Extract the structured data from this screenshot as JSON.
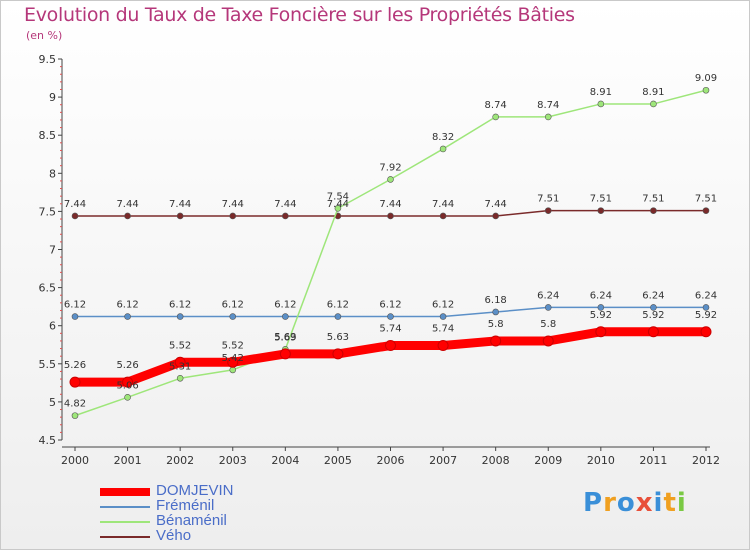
{
  "chart_data": {
    "type": "line",
    "title": "Evolution du Taux de Taxe Foncière sur les Propriétés Bâties",
    "ylabel": "(en %)",
    "xlabel": "",
    "ylim": [
      4.5,
      9.5
    ],
    "yticks": [
      "4.5",
      "5",
      "5.5",
      "6",
      "6.5",
      "7",
      "7.5",
      "8",
      "8.5",
      "9",
      "9.5"
    ],
    "ytick_values": [
      4.5,
      5,
      5.5,
      6,
      6.5,
      7,
      7.5,
      8,
      8.5,
      9,
      9.5
    ],
    "categories": [
      "2000",
      "2001",
      "2002",
      "2003",
      "2004",
      "2005",
      "2006",
      "2007",
      "2008",
      "2009",
      "2010",
      "2011",
      "2012"
    ],
    "series": [
      {
        "name": "DOMJEVIN",
        "color": "#ff0000",
        "values": [
          5.26,
          5.26,
          5.52,
          5.52,
          5.63,
          5.63,
          5.74,
          5.74,
          5.8,
          5.8,
          5.92,
          5.92,
          5.92
        ],
        "labels": [
          "5.26",
          "5.26",
          "5.52",
          "5.52",
          "5.63",
          "5.63",
          "5.74",
          "5.74",
          "5.8",
          "5.8",
          "5.92",
          "5.92",
          "5.92"
        ]
      },
      {
        "name": "Fréménil",
        "color": "#5b8fc7",
        "values": [
          6.12,
          6.12,
          6.12,
          6.12,
          6.12,
          6.12,
          6.12,
          6.12,
          6.18,
          6.24,
          6.24,
          6.24,
          6.24
        ],
        "labels": [
          "6.12",
          "6.12",
          "6.12",
          "6.12",
          "6.12",
          "6.12",
          "6.12",
          "6.12",
          "6.18",
          "6.24",
          "6.24",
          "6.24",
          "6.24"
        ]
      },
      {
        "name": "Bénaménil",
        "color": "#9ee67a",
        "values": [
          4.82,
          5.06,
          5.31,
          5.42,
          5.69,
          7.54,
          7.92,
          8.32,
          8.74,
          8.74,
          8.91,
          8.91,
          9.09
        ],
        "labels": [
          "4.82",
          "5.06",
          "5.31",
          "5.42",
          "5.69",
          "7.54",
          "7.92",
          "8.32",
          "8.74",
          "8.74",
          "8.91",
          "8.91",
          "9.09"
        ]
      },
      {
        "name": "Vého",
        "color": "#7a2a2a",
        "values": [
          7.44,
          7.44,
          7.44,
          7.44,
          7.44,
          7.44,
          7.44,
          7.44,
          7.44,
          7.51,
          7.51,
          7.51,
          7.51
        ],
        "labels": [
          "7.44",
          "7.44",
          "7.44",
          "7.44",
          "7.44",
          "7.44",
          "7.44",
          "7.44",
          "7.44",
          "7.51",
          "7.51",
          "7.51",
          "7.51"
        ]
      }
    ],
    "grid": false,
    "legend_position": "bottom-left"
  },
  "logo": {
    "letters": [
      "P",
      "r",
      "o",
      "x",
      "i",
      "t",
      "i"
    ],
    "colors": [
      "#3a8fd8",
      "#f0a020",
      "#3a8fd8",
      "#e8503a",
      "#3a8fd8",
      "#f0a020",
      "#7ac943"
    ]
  }
}
